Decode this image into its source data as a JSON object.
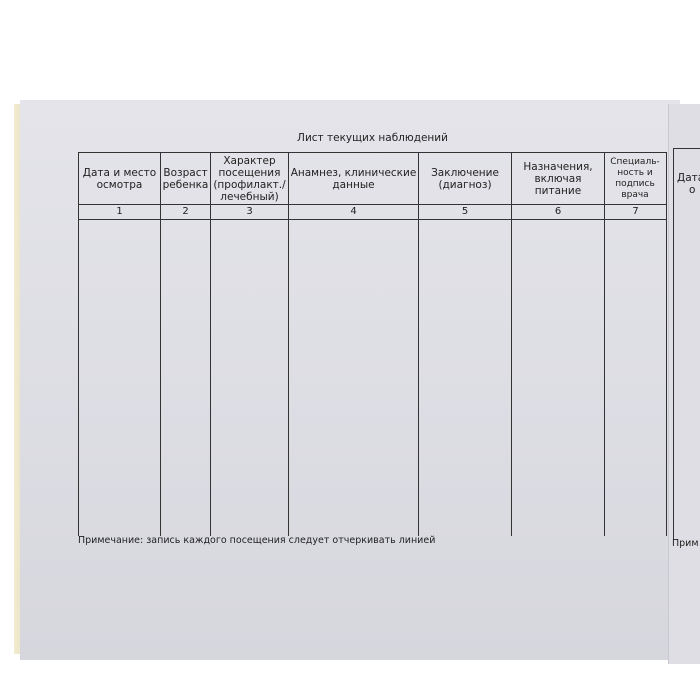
{
  "title": "Лист текущих наблюдений",
  "columns": [
    {
      "header": "Дата и место осмотра",
      "number": "1"
    },
    {
      "header": "Возраст ребенка",
      "number": "2"
    },
    {
      "header": "Характер посещения (профилакт./ лечебный)",
      "number": "3"
    },
    {
      "header": "Анамнез, клинические данные",
      "number": "4"
    },
    {
      "header": "Заключение (диагноз)",
      "number": "5"
    },
    {
      "header": "Назначения, включая питание",
      "number": "6"
    },
    {
      "header": "Специаль- ность и подпись врача",
      "number": "7"
    }
  ],
  "note": "Примечание: запись каждого посещения следует отчеркивать линией",
  "next_page": {
    "header_fragment": "Дата",
    "header_fragment2": "о",
    "note_fragment": "Прим"
  }
}
